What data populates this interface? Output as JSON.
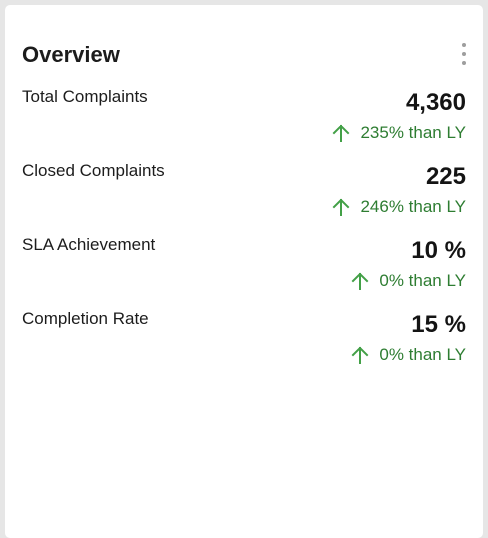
{
  "card": {
    "title": "Overview",
    "menu_icon": "more-vertical-icon"
  },
  "colors": {
    "positive": "#2e7d32",
    "trend_icon": "#43a047"
  },
  "metrics": [
    {
      "label": "Total Complaints",
      "value": "4,360",
      "change": "235% than LY",
      "trend": "up",
      "icon": "arrow-up-icon"
    },
    {
      "label": "Closed Complaints",
      "value": "225",
      "change": "246% than LY",
      "trend": "up",
      "icon": "arrow-up-icon"
    },
    {
      "label": "SLA Achievement",
      "value": "10 %",
      "change": "0% than LY",
      "trend": "up",
      "icon": "arrow-up-icon"
    },
    {
      "label": "Completion Rate",
      "value": "15 %",
      "change": "0% than LY",
      "trend": "up",
      "icon": "arrow-up-icon"
    }
  ]
}
